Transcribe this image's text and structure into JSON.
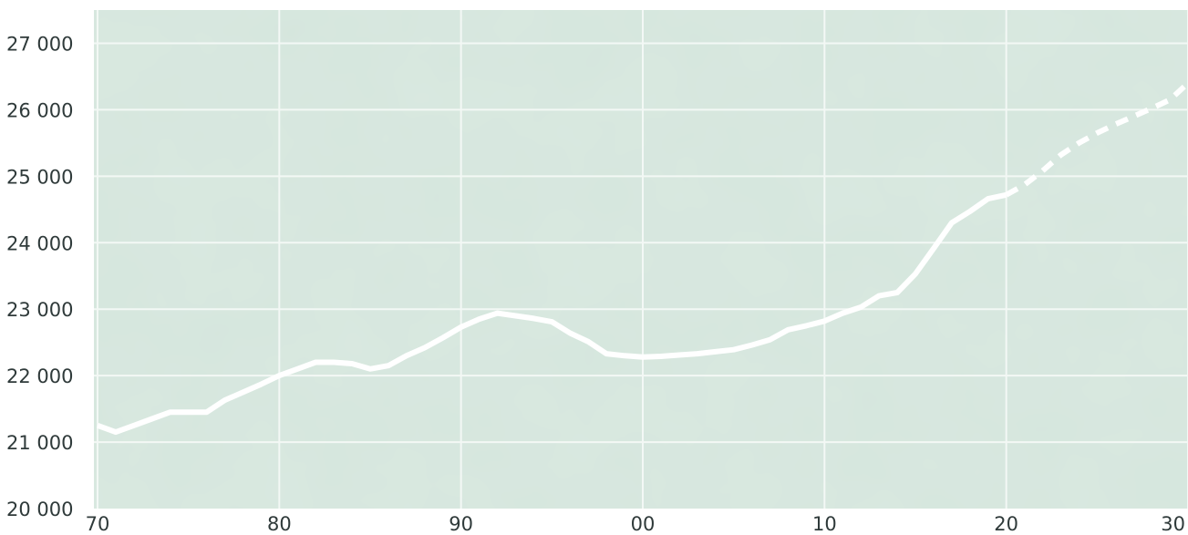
{
  "chart_data": {
    "type": "line",
    "title": "",
    "xlabel": "",
    "ylabel": "",
    "xlim": [
      1969.8,
      2030
    ],
    "ylim": [
      20000,
      27500
    ],
    "grid": true,
    "plot_background": "#d5e6dd",
    "line_color": "#ffffff",
    "x_ticks": [
      {
        "value": 1970,
        "label": "70"
      },
      {
        "value": 1980,
        "label": "80"
      },
      {
        "value": 1990,
        "label": "90"
      },
      {
        "value": 2000,
        "label": "00"
      },
      {
        "value": 2010,
        "label": "10"
      },
      {
        "value": 2020,
        "label": "20"
      },
      {
        "value": 2030,
        "label": "30"
      }
    ],
    "y_ticks": [
      {
        "value": 20000,
        "label": "20 000"
      },
      {
        "value": 21000,
        "label": "21 000"
      },
      {
        "value": 22000,
        "label": "22 000"
      },
      {
        "value": 23000,
        "label": "23 000"
      },
      {
        "value": 24000,
        "label": "24 000"
      },
      {
        "value": 25000,
        "label": "25 000"
      },
      {
        "value": 26000,
        "label": "26 000"
      },
      {
        "value": 27000,
        "label": "27 000"
      }
    ],
    "series": [
      {
        "style": "solid",
        "x": [
          1970,
          1971,
          1972,
          1973,
          1974,
          1975,
          1976,
          1977,
          1978,
          1979,
          1980,
          1981,
          1982,
          1983,
          1984,
          1985,
          1986,
          1987,
          1988,
          1989,
          1990,
          1991,
          1992,
          1993,
          1994,
          1995,
          1996,
          1997,
          1998,
          1999,
          2000,
          2001,
          2002,
          2003,
          2004,
          2005,
          2006,
          2007,
          2008,
          2009,
          2010,
          2011,
          2012,
          2013,
          2014,
          2015,
          2016,
          2017,
          2018,
          2019,
          2020
        ],
        "y": [
          21250,
          21150,
          21250,
          21350,
          21450,
          21450,
          21450,
          21630,
          21750,
          21870,
          22000,
          22100,
          22200,
          22200,
          22180,
          22100,
          22150,
          22300,
          22420,
          22570,
          22730,
          22850,
          22940,
          22900,
          22860,
          22810,
          22640,
          22510,
          22330,
          22300,
          22280,
          22290,
          22310,
          22330,
          22360,
          22390,
          22460,
          22540,
          22690,
          22750,
          22820,
          22940,
          23030,
          23200,
          23250,
          23530,
          23910,
          24300,
          24470,
          24660,
          24720
        ]
      },
      {
        "style": "dashed",
        "x": [
          2020,
          2021,
          2022,
          2023,
          2024,
          2025,
          2026,
          2027,
          2028,
          2029,
          2030
        ],
        "y": [
          24720,
          24870,
          25080,
          25320,
          25500,
          25650,
          25780,
          25900,
          26020,
          26150,
          26400
        ]
      }
    ]
  }
}
